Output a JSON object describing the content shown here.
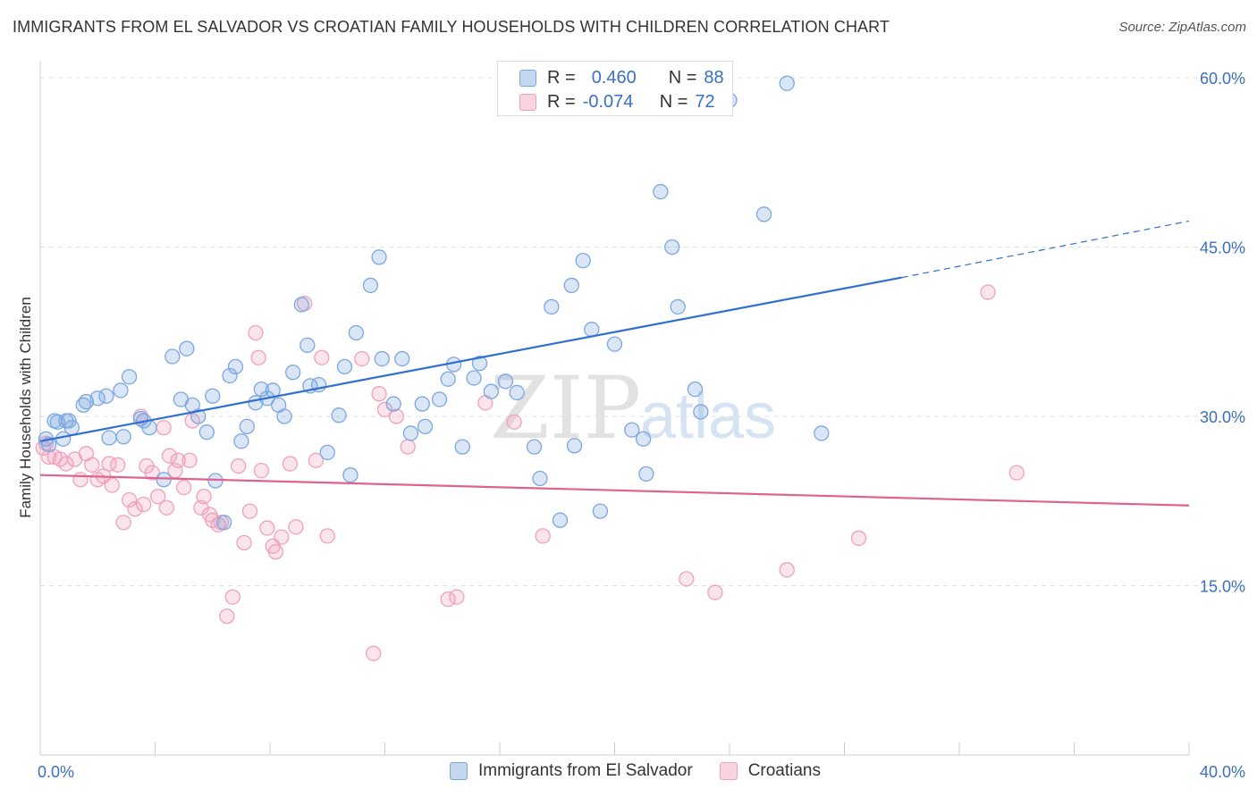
{
  "title": "IMMIGRANTS FROM EL SALVADOR VS CROATIAN FAMILY HOUSEHOLDS WITH CHILDREN CORRELATION CHART",
  "source": "Source: ZipAtlas.com",
  "watermark": {
    "zip": "ZIP",
    "atlas": "atlas"
  },
  "legend": {
    "rows": [
      {
        "r_label": "R =",
        "r_value": "0.460",
        "n_label": "N =",
        "n_value": "88",
        "color": "#7ba7e0"
      },
      {
        "r_label": "R =",
        "r_value": "-0.074",
        "n_label": "N =",
        "n_value": "72",
        "color": "#f0a0bb"
      }
    ]
  },
  "bottom_legend": {
    "series1": "Immigrants from El Salvador",
    "series2": "Croatians"
  },
  "colors": {
    "blue": "#7ba7e0",
    "blue_fill": "rgba(123,167,224,0.28)",
    "blue_line": "#2f6fd0",
    "pink": "#f0a0bb",
    "pink_fill": "rgba(240,160,187,0.28)",
    "pink_line": "#e0628e",
    "axis_label": "#3a6fc4"
  },
  "chart_data": {
    "type": "scatter",
    "title": "IMMIGRANTS FROM EL SALVADOR VS CROATIAN FAMILY HOUSEHOLDS WITH CHILDREN CORRELATION CHART",
    "xlabel": "",
    "ylabel": "Family Households with Children",
    "xlim": [
      0,
      40
    ],
    "ylim": [
      0,
      61.5
    ],
    "x_tick_labels": [
      "0.0%",
      "40.0%"
    ],
    "y_ticks": [
      15,
      30,
      45,
      60
    ],
    "y_tick_labels": [
      "15.0%",
      "30.0%",
      "45.0%",
      "60.0%"
    ],
    "grid": "horizontal dashed",
    "legend_position": "top-center",
    "series": [
      {
        "name": "Immigrants from El Salvador",
        "color": "#7ba7e0",
        "trend": {
          "x": [
            0,
            30
          ],
          "y": [
            27.8,
            42.3
          ],
          "dashed_to": [
            40,
            47.3
          ]
        },
        "points": [
          [
            0.2,
            28.0
          ],
          [
            0.3,
            27.5
          ],
          [
            0.5,
            29.6
          ],
          [
            0.6,
            29.5
          ],
          [
            0.8,
            28.0
          ],
          [
            0.9,
            29.6
          ],
          [
            1.0,
            29.6
          ],
          [
            1.1,
            29.0
          ],
          [
            1.5,
            31.0
          ],
          [
            1.6,
            31.3
          ],
          [
            2.0,
            31.6
          ],
          [
            2.3,
            31.8
          ],
          [
            2.4,
            28.1
          ],
          [
            2.8,
            32.3
          ],
          [
            2.9,
            28.2
          ],
          [
            3.1,
            33.5
          ],
          [
            3.5,
            29.8
          ],
          [
            3.6,
            29.6
          ],
          [
            3.8,
            29.0
          ],
          [
            4.3,
            24.4
          ],
          [
            4.6,
            35.3
          ],
          [
            4.9,
            31.5
          ],
          [
            5.1,
            36.0
          ],
          [
            5.3,
            31.0
          ],
          [
            5.5,
            30.0
          ],
          [
            5.8,
            28.6
          ],
          [
            6.0,
            31.8
          ],
          [
            6.1,
            24.3
          ],
          [
            6.4,
            20.6
          ],
          [
            6.6,
            33.6
          ],
          [
            6.8,
            34.4
          ],
          [
            7.0,
            27.8
          ],
          [
            7.2,
            29.1
          ],
          [
            7.5,
            31.2
          ],
          [
            7.7,
            32.4
          ],
          [
            7.9,
            31.6
          ],
          [
            8.1,
            32.3
          ],
          [
            8.3,
            31.0
          ],
          [
            8.5,
            30.0
          ],
          [
            8.8,
            33.9
          ],
          [
            9.1,
            39.9
          ],
          [
            9.3,
            36.3
          ],
          [
            9.4,
            32.7
          ],
          [
            9.7,
            32.8
          ],
          [
            10.0,
            26.8
          ],
          [
            10.4,
            30.1
          ],
          [
            10.6,
            34.4
          ],
          [
            10.8,
            24.8
          ],
          [
            11.0,
            37.4
          ],
          [
            11.5,
            41.6
          ],
          [
            11.8,
            44.1
          ],
          [
            11.9,
            35.1
          ],
          [
            12.3,
            31.1
          ],
          [
            12.6,
            35.1
          ],
          [
            12.9,
            28.5
          ],
          [
            13.3,
            31.1
          ],
          [
            13.4,
            29.1
          ],
          [
            13.9,
            31.5
          ],
          [
            14.2,
            33.3
          ],
          [
            14.4,
            34.6
          ],
          [
            14.7,
            27.3
          ],
          [
            15.1,
            33.4
          ],
          [
            15.3,
            34.7
          ],
          [
            15.7,
            32.2
          ],
          [
            16.2,
            33.1
          ],
          [
            16.6,
            32.1
          ],
          [
            17.2,
            27.3
          ],
          [
            17.4,
            24.5
          ],
          [
            17.8,
            39.7
          ],
          [
            18.1,
            20.8
          ],
          [
            18.5,
            41.6
          ],
          [
            18.6,
            27.4
          ],
          [
            18.9,
            43.8
          ],
          [
            19.2,
            37.7
          ],
          [
            19.5,
            21.6
          ],
          [
            20.0,
            36.4
          ],
          [
            20.6,
            28.8
          ],
          [
            21.0,
            28.0
          ],
          [
            21.1,
            24.9
          ],
          [
            21.6,
            49.9
          ],
          [
            22.0,
            45.0
          ],
          [
            22.2,
            39.7
          ],
          [
            22.8,
            32.4
          ],
          [
            23.0,
            30.4
          ],
          [
            24.0,
            58.0
          ],
          [
            25.2,
            47.9
          ],
          [
            26.0,
            59.5
          ],
          [
            27.2,
            28.5
          ]
        ]
      },
      {
        "name": "Croatians",
        "color": "#f0a0bb",
        "trend": {
          "x": [
            0,
            40
          ],
          "y": [
            24.8,
            22.1
          ]
        },
        "points": [
          [
            0.1,
            27.2
          ],
          [
            0.2,
            27.6
          ],
          [
            0.3,
            26.4
          ],
          [
            0.5,
            26.4
          ],
          [
            0.7,
            26.2
          ],
          [
            0.9,
            25.8
          ],
          [
            1.2,
            26.2
          ],
          [
            1.4,
            24.4
          ],
          [
            1.6,
            26.7
          ],
          [
            1.8,
            25.7
          ],
          [
            2.0,
            24.4
          ],
          [
            2.2,
            24.7
          ],
          [
            2.4,
            25.8
          ],
          [
            2.5,
            23.9
          ],
          [
            2.7,
            25.7
          ],
          [
            2.9,
            20.6
          ],
          [
            3.1,
            22.6
          ],
          [
            3.3,
            21.8
          ],
          [
            3.5,
            30.0
          ],
          [
            3.6,
            22.2
          ],
          [
            3.7,
            25.6
          ],
          [
            3.9,
            25.0
          ],
          [
            4.1,
            22.9
          ],
          [
            4.3,
            29.0
          ],
          [
            4.4,
            21.9
          ],
          [
            4.5,
            26.5
          ],
          [
            4.7,
            25.2
          ],
          [
            4.8,
            26.1
          ],
          [
            5.0,
            23.7
          ],
          [
            5.2,
            26.1
          ],
          [
            5.3,
            29.6
          ],
          [
            5.6,
            21.9
          ],
          [
            5.7,
            22.9
          ],
          [
            5.9,
            21.3
          ],
          [
            6.0,
            20.8
          ],
          [
            6.2,
            20.4
          ],
          [
            6.3,
            20.6
          ],
          [
            6.5,
            12.3
          ],
          [
            6.7,
            14.0
          ],
          [
            6.9,
            25.6
          ],
          [
            7.1,
            18.8
          ],
          [
            7.3,
            21.6
          ],
          [
            7.5,
            37.4
          ],
          [
            7.6,
            35.2
          ],
          [
            7.7,
            25.2
          ],
          [
            7.9,
            20.1
          ],
          [
            8.1,
            18.5
          ],
          [
            8.2,
            18.0
          ],
          [
            8.4,
            19.3
          ],
          [
            8.7,
            25.8
          ],
          [
            8.9,
            20.2
          ],
          [
            9.2,
            40.0
          ],
          [
            9.6,
            26.1
          ],
          [
            9.8,
            35.2
          ],
          [
            10.0,
            19.4
          ],
          [
            11.2,
            35.1
          ],
          [
            11.6,
            9.0
          ],
          [
            11.8,
            32.0
          ],
          [
            12.0,
            30.6
          ],
          [
            12.4,
            30.0
          ],
          [
            12.8,
            27.3
          ],
          [
            14.2,
            13.8
          ],
          [
            14.5,
            14.0
          ],
          [
            15.5,
            31.2
          ],
          [
            16.5,
            29.5
          ],
          [
            17.5,
            19.4
          ],
          [
            22.5,
            15.6
          ],
          [
            23.5,
            14.4
          ],
          [
            26.0,
            16.4
          ],
          [
            28.5,
            19.2
          ],
          [
            33.0,
            41.0
          ],
          [
            34.0,
            25.0
          ]
        ]
      }
    ]
  }
}
